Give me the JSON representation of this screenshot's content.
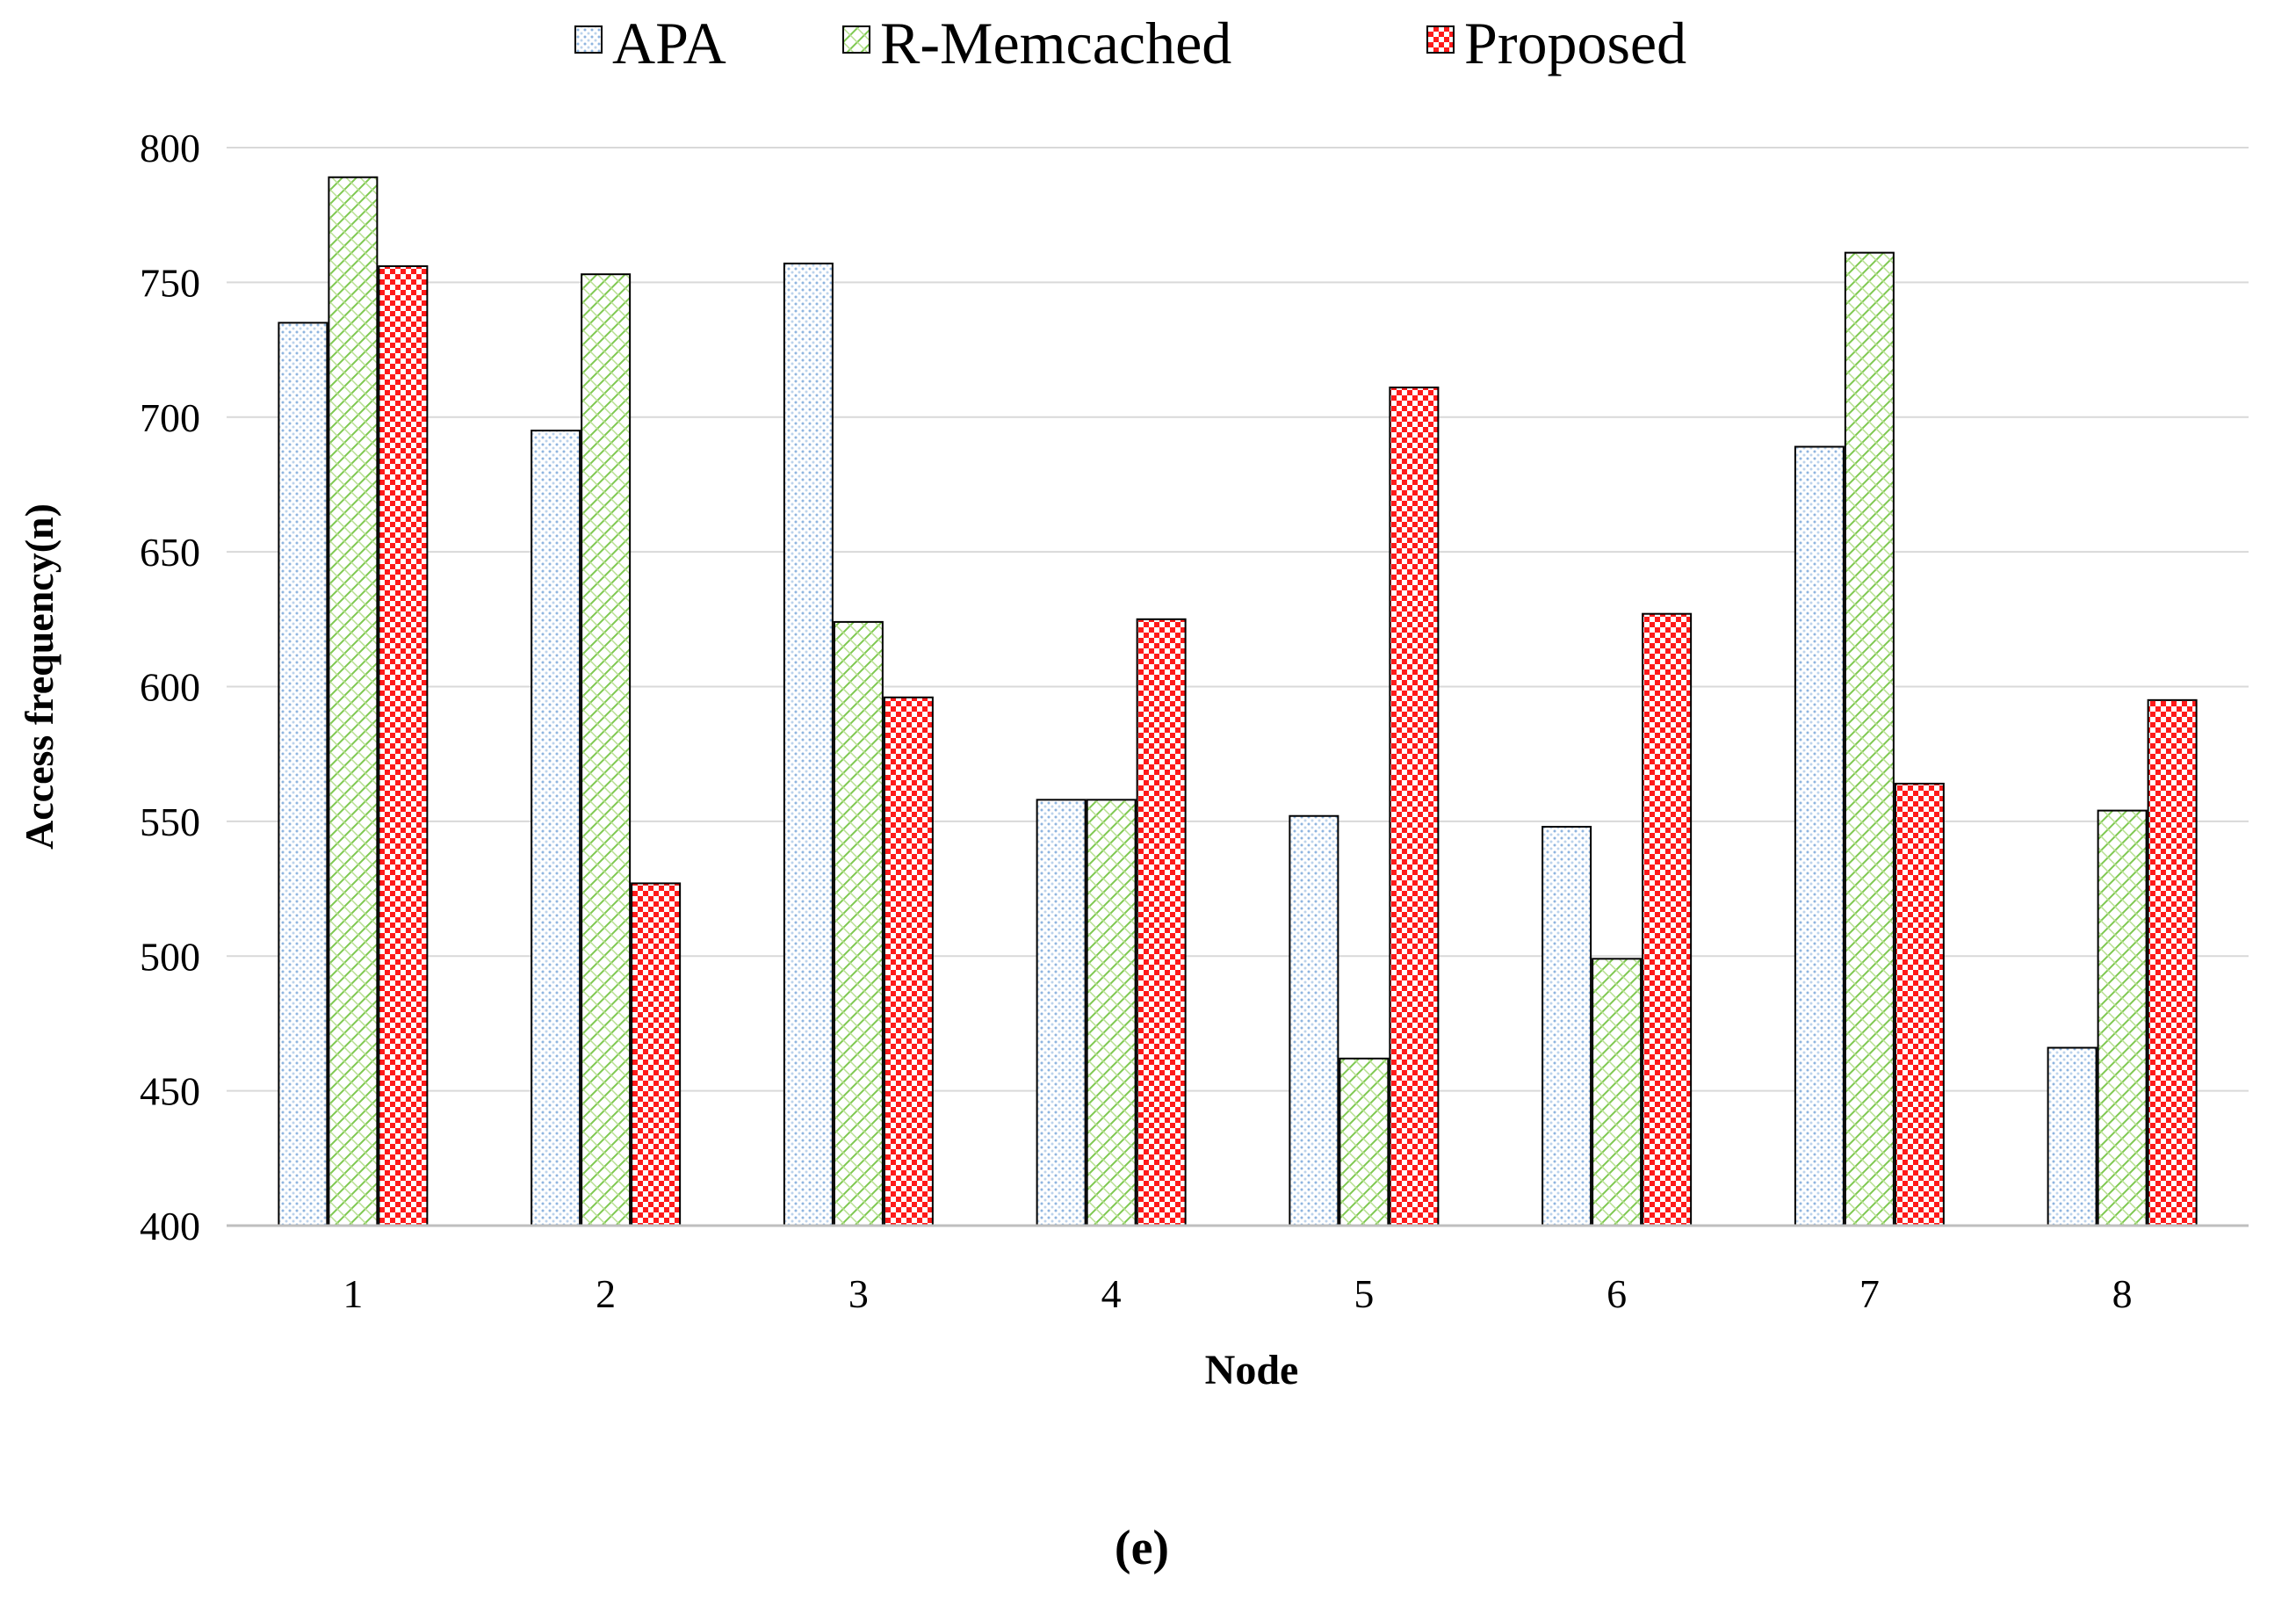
{
  "chart_data": {
    "type": "bar",
    "title": "",
    "xlabel": "Node",
    "ylabel": "Access frequency(n)",
    "caption": "(e)",
    "categories": [
      "1",
      "2",
      "3",
      "4",
      "5",
      "6",
      "7",
      "8"
    ],
    "series": [
      {
        "name": "APA",
        "values": [
          735,
          695,
          757,
          558,
          552,
          548,
          689,
          466
        ],
        "color": "#dbe8f5",
        "pattern": "dots"
      },
      {
        "name": "R-Memcached",
        "values": [
          789,
          753,
          624,
          558,
          462,
          499,
          761,
          554
        ],
        "color": "#7ec850",
        "pattern": "crosshatch"
      },
      {
        "name": "Proposed",
        "values": [
          756,
          527,
          596,
          625,
          711,
          627,
          564,
          595
        ],
        "color": "#ff0000",
        "pattern": "checker"
      }
    ],
    "ylim": [
      400,
      800
    ],
    "yticks": [
      400,
      450,
      500,
      550,
      600,
      650,
      700,
      750,
      800
    ],
    "grid": true,
    "legend_position": "top-center"
  }
}
